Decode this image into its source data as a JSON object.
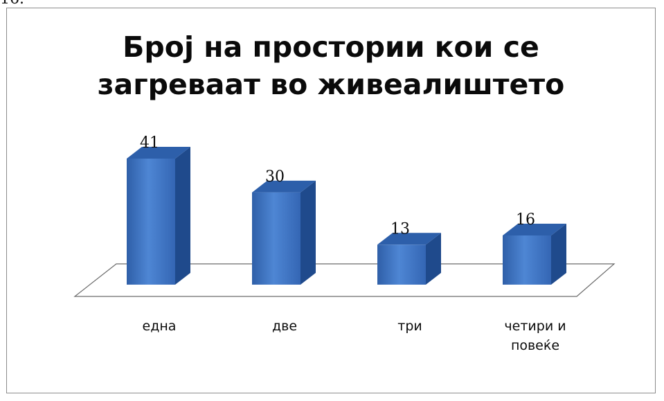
{
  "top_fragment": "16.",
  "chart_data": {
    "type": "bar",
    "title_lines": [
      "Број на простории кои се",
      "загреваат во живеалиштето"
    ],
    "categories": [
      [
        "една"
      ],
      [
        "две"
      ],
      [
        "три"
      ],
      [
        "четири и",
        "повеќе"
      ]
    ],
    "values": [
      41,
      30,
      13,
      16
    ],
    "data_labels": [
      "41",
      "30",
      "13",
      "16"
    ],
    "ylim": [
      0,
      41
    ],
    "grid": false,
    "legend": false,
    "three_d": true,
    "colors": {
      "bar_front": "#3c6fbf",
      "bar_front_light": "#5b8fd8",
      "bar_side": "#1f4a8c",
      "bar_top": "#2d5faa",
      "floor_line": "#6a6a6a",
      "frame": "#8a8a8a"
    }
  }
}
